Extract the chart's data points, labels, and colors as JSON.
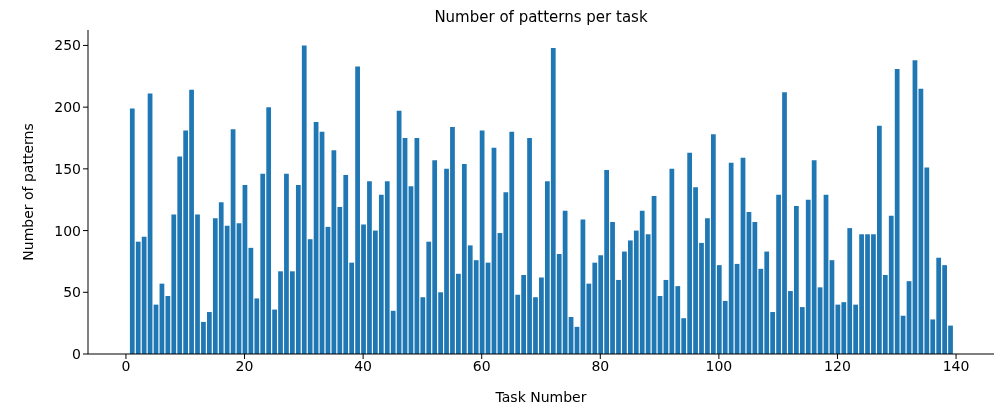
{
  "chart_data": {
    "type": "bar",
    "title": "Number of patterns per task",
    "xlabel": "Task Number",
    "ylabel": "Number of patterns",
    "color": "#1f77b4",
    "x": [
      1,
      2,
      3,
      4,
      5,
      6,
      7,
      8,
      9,
      10,
      11,
      12,
      13,
      14,
      15,
      16,
      17,
      18,
      19,
      20,
      21,
      22,
      23,
      24,
      25,
      26,
      27,
      28,
      29,
      30,
      31,
      32,
      33,
      34,
      35,
      36,
      37,
      38,
      39,
      40,
      41,
      42,
      43,
      44,
      45,
      46,
      47,
      48,
      49,
      50,
      51,
      52,
      53,
      54,
      55,
      56,
      57,
      58,
      59,
      60,
      61,
      62,
      63,
      64,
      65,
      66,
      67,
      68,
      69,
      70,
      71,
      72,
      73,
      74,
      75,
      76,
      77,
      78,
      79,
      80,
      81,
      82,
      83,
      84,
      85,
      86,
      87,
      88,
      89,
      90,
      91,
      92,
      93,
      94,
      95,
      96,
      97,
      98,
      99,
      100,
      101,
      102,
      103,
      104,
      105,
      106,
      107,
      108,
      109,
      110,
      111,
      112,
      113,
      114,
      115,
      116,
      117,
      118,
      119,
      120,
      121,
      122,
      123,
      124,
      125,
      126,
      127,
      128,
      129,
      130,
      131,
      132,
      133,
      134,
      135,
      136,
      137,
      138,
      139
    ],
    "values": [
      199,
      91,
      95,
      211,
      40,
      57,
      47,
      113,
      160,
      181,
      214,
      113,
      26,
      34,
      110,
      123,
      104,
      182,
      106,
      137,
      86,
      45,
      146,
      200,
      36,
      67,
      146,
      67,
      137,
      250,
      93,
      188,
      180,
      103,
      165,
      119,
      145,
      74,
      233,
      105,
      140,
      100,
      129,
      140,
      35,
      197,
      175,
      136,
      175,
      46,
      91,
      157,
      50,
      150,
      184,
      65,
      154,
      88,
      76,
      181,
      74,
      167,
      98,
      131,
      180,
      48,
      64,
      175,
      46,
      62,
      140,
      248,
      81,
      116,
      30,
      22,
      109,
      57,
      74,
      80,
      149,
      107,
      60,
      83,
      92,
      100,
      116,
      97,
      128,
      47,
      60,
      150,
      55,
      29,
      163,
      135,
      90,
      110,
      178,
      72,
      43,
      155,
      73,
      159,
      115,
      107,
      69,
      83,
      34,
      129,
      212,
      51,
      120,
      38,
      125,
      157,
      54,
      129,
      76,
      40,
      42,
      102,
      40,
      97,
      97,
      97,
      185,
      64,
      112,
      231,
      31,
      59,
      238,
      215,
      151,
      28,
      78,
      72,
      23
    ],
    "xlim": [
      -6.4,
      146.4
    ],
    "xticks": [
      0,
      20,
      40,
      60,
      80,
      100,
      120,
      140
    ],
    "ylim": [
      0,
      262.5
    ],
    "yticks": [
      0,
      50,
      100,
      150,
      200,
      250
    ]
  }
}
